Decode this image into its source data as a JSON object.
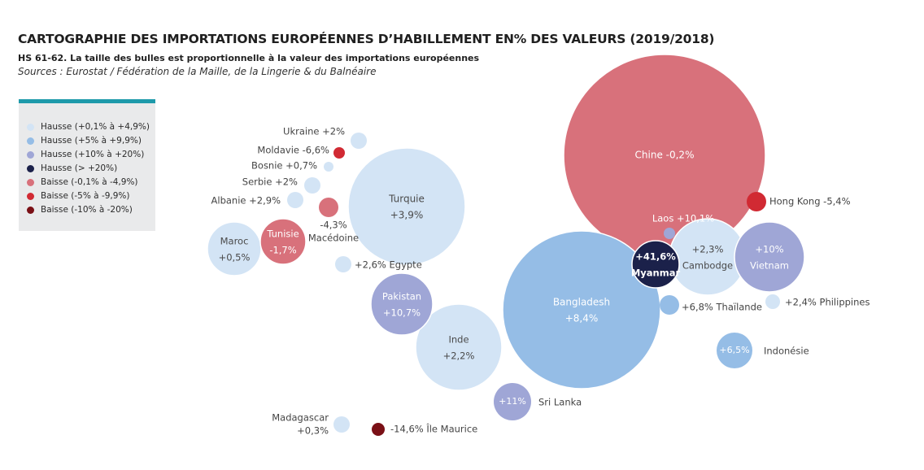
{
  "title": "CARTOGRAPHIE DES IMPORTATIONS EUROPÉENNES D’HABILLEMENT EN% DES VALEURS (2019/2018)",
  "subtitle": "HS 61-62. La taille des bulles est proportionnelle à la valeur des importations européennes",
  "sources": "Sources : Eurostat / Fédération de la Maille, de la Lingerie & du Balnéaire",
  "legend": [
    {
      "label": "Hausse (+0,1% à +4,9%)",
      "color": "#d3e4f5"
    },
    {
      "label": "Hausse (+5% à +9,9%)",
      "color": "#95bde6"
    },
    {
      "label": "Hausse (+10% à +20%)",
      "color": "#9fa6d6"
    },
    {
      "label": "Hausse (> +20%)",
      "color": "#1b214a"
    },
    {
      "label": "Baisse (-0,1% à -4,9%)",
      "color": "#d8717b"
    },
    {
      "label": "Baisse (-5% à -9,9%)",
      "color": "#d12a33"
    },
    {
      "label": "Baisse (-10% à -20%)",
      "color": "#7a1016"
    }
  ],
  "chart_data": {
    "type": "bubble",
    "title": "CARTOGRAPHIE DES IMPORTATIONS EUROPÉENNES D’HABILLEMENT EN% DES VALEURS (2019/2018)",
    "size_encoding": "relative value of European imports",
    "series": [
      {
        "country": "Chine",
        "change_label": "-0,2%",
        "change": -0.2,
        "category": "Baisse (-0,1% à -4,9%)"
      },
      {
        "country": "Bangladesh",
        "change_label": "+8,4%",
        "change": 8.4,
        "category": "Hausse (+5% à +9,9%)"
      },
      {
        "country": "Turquie",
        "change_label": "+3,9%",
        "change": 3.9,
        "category": "Hausse (+0,1% à +4,9%)"
      },
      {
        "country": "Inde",
        "change_label": "+2,2%",
        "change": 2.2,
        "category": "Hausse (+0,1% à +4,9%)"
      },
      {
        "country": "Cambodge",
        "change_label": "+2,3%",
        "change": 2.3,
        "category": "Hausse (+0,1% à +4,9%)"
      },
      {
        "country": "Vietnam",
        "change_label": "+10%",
        "change": 10.0,
        "category": "Hausse (+10% à +20%)"
      },
      {
        "country": "Pakistan",
        "change_label": "+10,7%",
        "change": 10.7,
        "category": "Hausse (+10% à +20%)"
      },
      {
        "country": "Maroc",
        "change_label": "+0,5%",
        "change": 0.5,
        "category": "Hausse (+0,1% à +4,9%)"
      },
      {
        "country": "Tunisie",
        "change_label": "-1,7%",
        "change": -1.7,
        "category": "Baisse (-0,1% à -4,9%)"
      },
      {
        "country": "Myanmar",
        "change_label": "+41,6%",
        "change": 41.6,
        "category": "Hausse (> +20%)"
      },
      {
        "country": "Sri Lanka",
        "change_label": "+11%",
        "change": 11.0,
        "category": "Hausse (+10% à +20%)"
      },
      {
        "country": "Indonésie",
        "change_label": "+6,5%",
        "change": 6.5,
        "category": "Hausse (+5% à +9,9%)"
      },
      {
        "country": "Hong Kong",
        "change_label": "-5,4%",
        "change": -5.4,
        "category": "Baisse (-5% à -9,9%)"
      },
      {
        "country": "Thaïlande",
        "change_label": "+6,8%",
        "change": 6.8,
        "category": "Hausse (+5% à +9,9%)"
      },
      {
        "country": "Philippines",
        "change_label": "+2,4%",
        "change": 2.4,
        "category": "Hausse (+0,1% à +4,9%)"
      },
      {
        "country": "Laos",
        "change_label": "+10,1%",
        "change": 10.1,
        "category": "Hausse (+10% à +20%)"
      },
      {
        "country": "Egypte",
        "change_label": "+2,6%",
        "change": 2.6,
        "category": "Hausse (+0,1% à +4,9%)"
      },
      {
        "country": "Macédoine",
        "change_label": "-4,3%",
        "change": -4.3,
        "category": "Baisse (-0,1% à -4,9%)"
      },
      {
        "country": "Albanie",
        "change_label": "+2,9%",
        "change": 2.9,
        "category": "Hausse (+0,1% à +4,9%)"
      },
      {
        "country": "Serbie",
        "change_label": "+2%",
        "change": 2.0,
        "category": "Hausse (+0,1% à +4,9%)"
      },
      {
        "country": "Bosnie",
        "change_label": "+0,7%",
        "change": 0.7,
        "category": "Hausse (+0,1% à +4,9%)"
      },
      {
        "country": "Moldavie",
        "change_label": "-6,6%",
        "change": -6.6,
        "category": "Baisse (-5% à -9,9%)"
      },
      {
        "country": "Ukraine",
        "change_label": "+2%",
        "change": 2.0,
        "category": "Hausse (+0,1% à +4,9%)"
      },
      {
        "country": "Madagascar",
        "change_label": "+0,3%",
        "change": 0.3,
        "category": "Hausse (+0,1% à +4,9%)"
      },
      {
        "country": "Île Maurice",
        "change_label": "-14,6%",
        "change": -14.6,
        "category": "Baisse (-10% à -20%)"
      }
    ]
  }
}
